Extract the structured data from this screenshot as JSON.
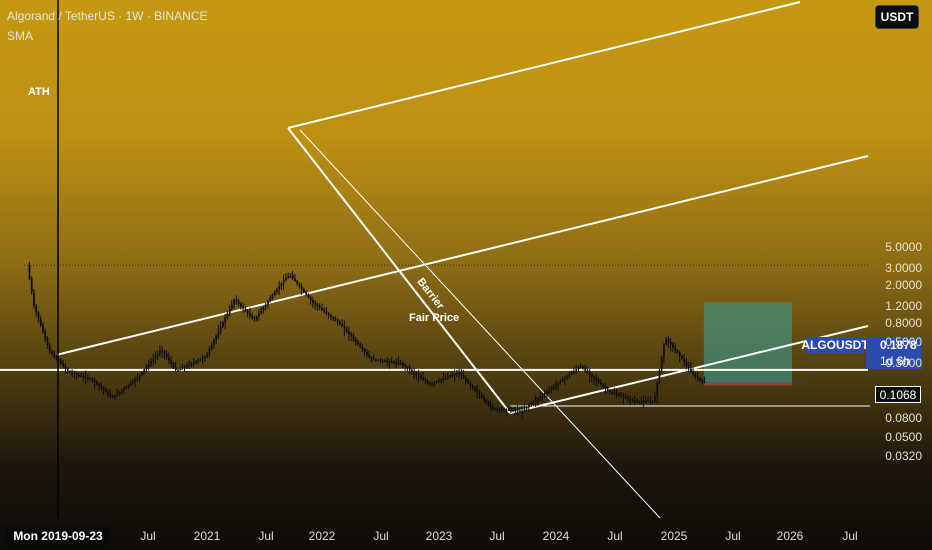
{
  "header": {
    "title": "Algorand / TetherUS · 1W · BINANCE",
    "indicator": "SMA"
  },
  "currency_button": "USDT",
  "price_axis": {
    "labels": [
      {
        "text": "5.0000",
        "value": 5.0
      },
      {
        "text": "3.0000",
        "value": 3.0
      },
      {
        "text": "2.0000",
        "value": 2.0
      },
      {
        "text": "1.2000",
        "value": 1.2
      },
      {
        "text": "0.8000",
        "value": 0.8
      },
      {
        "text": "0.5000",
        "value": 0.5
      },
      {
        "text": "0.3000",
        "value": 0.3
      },
      {
        "text": "0.0800",
        "value": 0.08
      },
      {
        "text": "0.0500",
        "value": 0.05
      },
      {
        "text": "0.0320",
        "value": 0.032
      }
    ]
  },
  "time_axis": {
    "labels": [
      "Jul",
      "2021",
      "Jul",
      "2022",
      "Jul",
      "2023",
      "Jul",
      "2024",
      "Jul",
      "2025",
      "Jul",
      "2026",
      "Jul"
    ],
    "cursor_date": "Mon 2019-09-23"
  },
  "symbol_tag": {
    "symbol": "ALGOUSDT",
    "price": "0.1878",
    "countdown": "1d 6h"
  },
  "level_tag": "0.1068",
  "annotations": {
    "ath": "ATH",
    "barrier": "Barrier",
    "fair_price": "Fair Price"
  },
  "colors": {
    "up": "#0b0b0b",
    "down": "#111111",
    "lines": "#ffffff",
    "target_box": "#3f9a8a",
    "tag": "#2a4bb0"
  },
  "chart_data": {
    "type": "candlestick",
    "symbol": "ALGOUSDT",
    "interval": "1W",
    "scale": "log",
    "points": [
      [
        "2019-06-24",
        3.2
      ],
      [
        "2019-07-15",
        1.2
      ],
      [
        "2019-09-02",
        0.4
      ],
      [
        "2019-11-01",
        0.24
      ],
      [
        "2020-01-15",
        0.2
      ],
      [
        "2020-03-15",
        0.13
      ],
      [
        "2020-06-01",
        0.21
      ],
      [
        "2020-08-15",
        0.42
      ],
      [
        "2020-10-01",
        0.25
      ],
      [
        "2021-01-01",
        0.35
      ],
      [
        "2021-04-01",
        1.4
      ],
      [
        "2021-06-01",
        0.85
      ],
      [
        "2021-09-01",
        2.2
      ],
      [
        "2021-09-20",
        2.55
      ],
      [
        "2021-12-01",
        1.3
      ],
      [
        "2022-03-01",
        0.75
      ],
      [
        "2022-06-01",
        0.33
      ],
      [
        "2022-09-01",
        0.3
      ],
      [
        "2022-12-01",
        0.18
      ],
      [
        "2023-03-01",
        0.24
      ],
      [
        "2023-06-15",
        0.1
      ],
      [
        "2023-09-15",
        0.095
      ],
      [
        "2024-01-01",
        0.18
      ],
      [
        "2024-03-15",
        0.28
      ],
      [
        "2024-06-15",
        0.15
      ],
      [
        "2024-09-01",
        0.12
      ],
      [
        "2024-11-01",
        0.12
      ],
      [
        "2024-12-05",
        0.55
      ],
      [
        "2025-01-15",
        0.38
      ],
      [
        "2025-03-01",
        0.23
      ],
      [
        "2025-04-01",
        0.19
      ]
    ],
    "levels": {
      "ath": 3.2,
      "fair_price": 0.255,
      "support": 0.1068,
      "last": 0.1878
    },
    "target_zone": {
      "from": "2025-04-01",
      "to": "2026-01-01",
      "bottom": 0.1878,
      "top": 1.3
    }
  }
}
